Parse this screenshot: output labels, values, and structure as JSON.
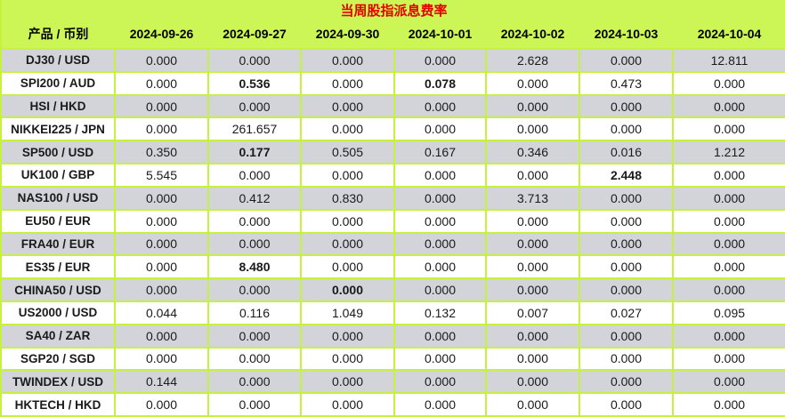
{
  "title": "当周股指派息费率",
  "colors": {
    "header_bg": "#CCF556",
    "border": "#C6F23F",
    "row_alt_bg": "#D2D4D9",
    "row_bg": "#FFFFFF",
    "title_text": "#E60000",
    "body_text": "#1A1A1A"
  },
  "table": {
    "product_header": "产品 / 币别",
    "date_headers": [
      "2024-09-26",
      "2024-09-27",
      "2024-09-30",
      "2024-10-01",
      "2024-10-02",
      "2024-10-03",
      "2024-10-04"
    ],
    "rows": [
      {
        "product": "DJ30 / USD",
        "values": [
          "0.000",
          "0.000",
          "0.000",
          "0.000",
          "2.628",
          "0.000",
          "12.811"
        ],
        "bold": []
      },
      {
        "product": "SPI200 / AUD",
        "values": [
          "0.000",
          "0.536",
          "0.000",
          "0.078",
          "0.000",
          "0.473",
          "0.000"
        ],
        "bold": [
          1,
          3
        ]
      },
      {
        "product": "HSI / HKD",
        "values": [
          "0.000",
          "0.000",
          "0.000",
          "0.000",
          "0.000",
          "0.000",
          "0.000"
        ],
        "bold": []
      },
      {
        "product": "NIKKEI225 / JPN",
        "values": [
          "0.000",
          "261.657",
          "0.000",
          "0.000",
          "0.000",
          "0.000",
          "0.000"
        ],
        "bold": []
      },
      {
        "product": "SP500 / USD",
        "values": [
          "0.350",
          "0.177",
          "0.505",
          "0.167",
          "0.346",
          "0.016",
          "1.212"
        ],
        "bold": [
          1
        ]
      },
      {
        "product": "UK100 / GBP",
        "values": [
          "5.545",
          "0.000",
          "0.000",
          "0.000",
          "0.000",
          "2.448",
          "0.000"
        ],
        "bold": [
          5
        ]
      },
      {
        "product": "NAS100 / USD",
        "values": [
          "0.000",
          "0.412",
          "0.830",
          "0.000",
          "3.713",
          "0.000",
          "0.000"
        ],
        "bold": []
      },
      {
        "product": "EU50 / EUR",
        "values": [
          "0.000",
          "0.000",
          "0.000",
          "0.000",
          "0.000",
          "0.000",
          "0.000"
        ],
        "bold": []
      },
      {
        "product": "FRA40 / EUR",
        "values": [
          "0.000",
          "0.000",
          "0.000",
          "0.000",
          "0.000",
          "0.000",
          "0.000"
        ],
        "bold": []
      },
      {
        "product": "ES35 / EUR",
        "values": [
          "0.000",
          "8.480",
          "0.000",
          "0.000",
          "0.000",
          "0.000",
          "0.000"
        ],
        "bold": [
          1
        ]
      },
      {
        "product": "CHINA50 / USD",
        "values": [
          "0.000",
          "0.000",
          "0.000",
          "0.000",
          "0.000",
          "0.000",
          "0.000"
        ],
        "bold": [
          2
        ]
      },
      {
        "product": "US2000 / USD",
        "values": [
          "0.044",
          "0.116",
          "1.049",
          "0.132",
          "0.007",
          "0.027",
          "0.095"
        ],
        "bold": []
      },
      {
        "product": "SA40 / ZAR",
        "values": [
          "0.000",
          "0.000",
          "0.000",
          "0.000",
          "0.000",
          "0.000",
          "0.000"
        ],
        "bold": []
      },
      {
        "product": "SGP20 / SGD",
        "values": [
          "0.000",
          "0.000",
          "0.000",
          "0.000",
          "0.000",
          "0.000",
          "0.000"
        ],
        "bold": []
      },
      {
        "product": "TWINDEX / USD",
        "values": [
          "0.144",
          "0.000",
          "0.000",
          "0.000",
          "0.000",
          "0.000",
          "0.000"
        ],
        "bold": []
      },
      {
        "product": "HKTECH / HKD",
        "values": [
          "0.000",
          "0.000",
          "0.000",
          "0.000",
          "0.000",
          "0.000",
          "0.000"
        ],
        "bold": []
      }
    ]
  }
}
